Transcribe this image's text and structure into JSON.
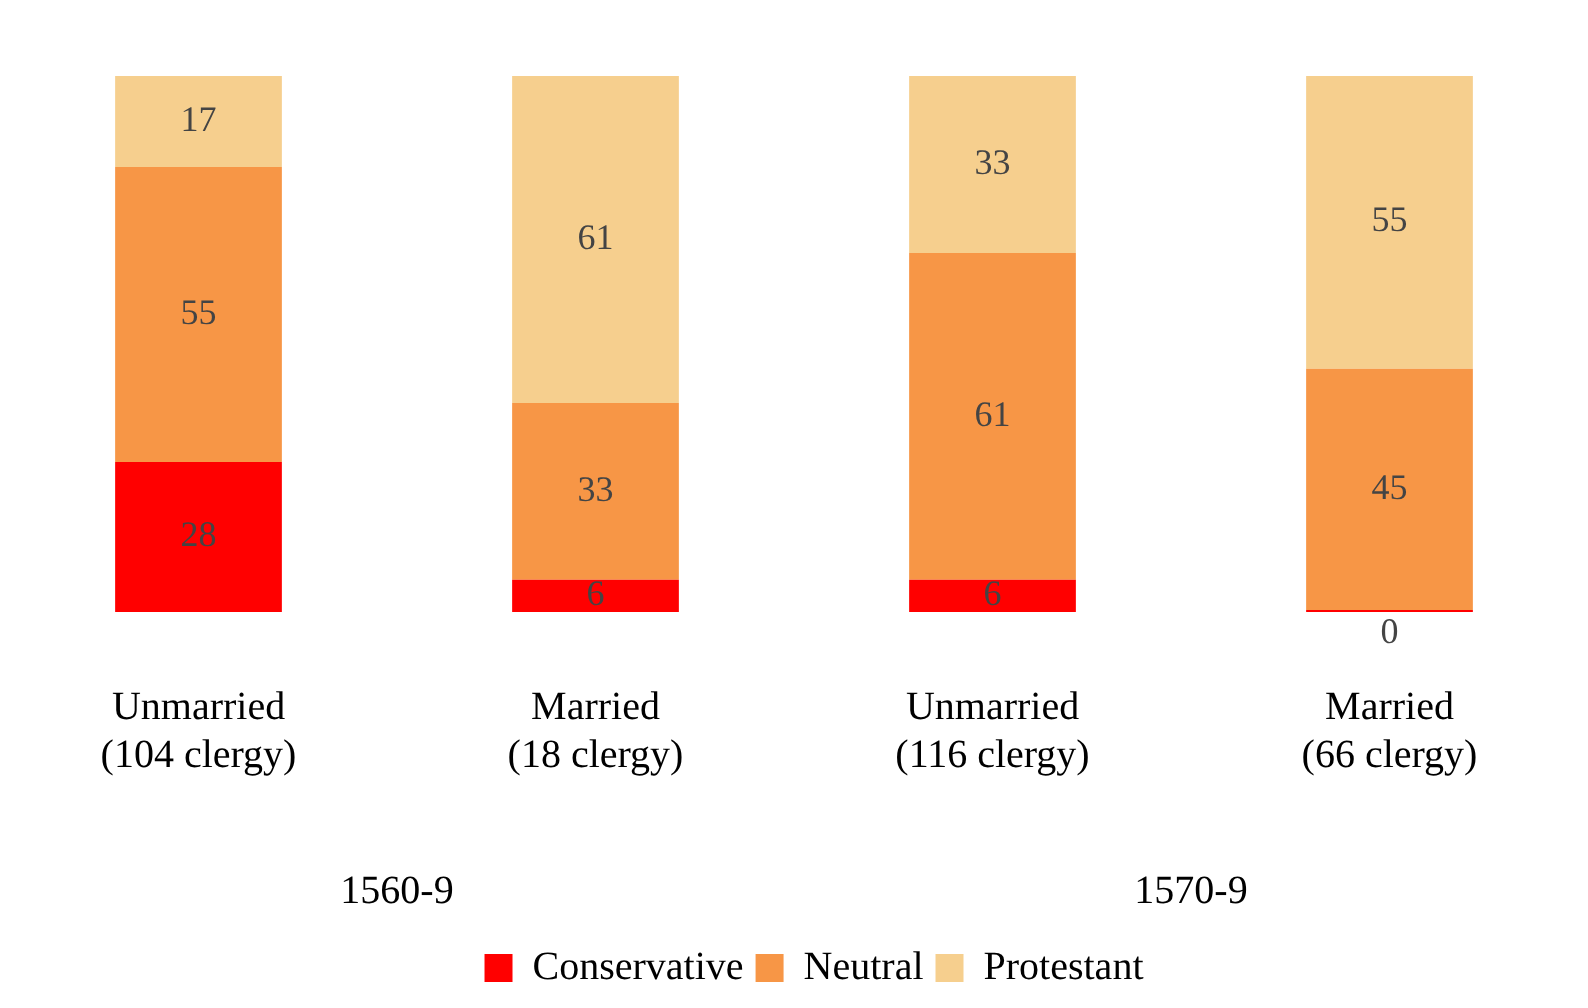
{
  "chart_data": {
    "type": "bar",
    "stacked": true,
    "tick_labels": "x",
    "data_labels": true,
    "legend": "bottom",
    "grid": false,
    "categories": [
      "Unmarried\n(104 clergy)",
      "Married\n(18 clergy)",
      "Unmarried\n(116 clergy)",
      "Married\n(66 clergy)"
    ],
    "series": [
      {
        "name": "Conservative",
        "color": "#ff0000",
        "values": [
          28,
          6,
          6,
          0
        ]
      },
      {
        "name": "Neutral",
        "color": "#f79646",
        "values": [
          55,
          33,
          61,
          45
        ]
      },
      {
        "name": "Protestant",
        "color": "#f6cf8e",
        "values": [
          17,
          61,
          33,
          55
        ]
      }
    ],
    "annotations": [
      "1560-9",
      "1570-9"
    ]
  }
}
